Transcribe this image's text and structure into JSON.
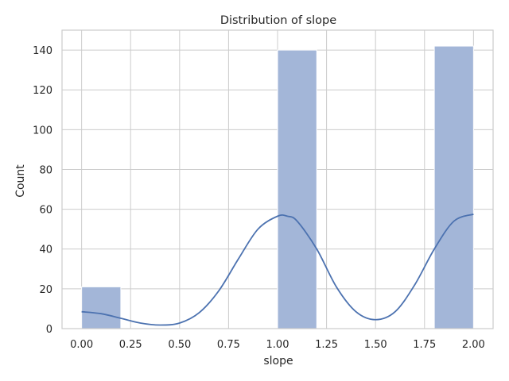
{
  "chart_data": {
    "type": "bar",
    "title": "Distribution of slope",
    "xlabel": "slope",
    "ylabel": "Count",
    "xlim": [
      -0.1,
      2.1
    ],
    "ylim": [
      0,
      150
    ],
    "xticks": [
      0.0,
      0.25,
      0.5,
      0.75,
      1.0,
      1.25,
      1.5,
      1.75,
      2.0
    ],
    "xtick_labels": [
      "0.00",
      "0.25",
      "0.50",
      "0.75",
      "1.00",
      "1.25",
      "1.50",
      "1.75",
      "2.00"
    ],
    "yticks": [
      0,
      20,
      40,
      60,
      80,
      100,
      120,
      140
    ],
    "ytick_labels": [
      "0",
      "20",
      "40",
      "60",
      "80",
      "100",
      "120",
      "140"
    ],
    "grid": true,
    "bins": [
      {
        "x0": 0.0,
        "x1": 0.2,
        "count": 21
      },
      {
        "x0": 0.2,
        "x1": 0.4,
        "count": 0
      },
      {
        "x0": 0.4,
        "x1": 0.6,
        "count": 0
      },
      {
        "x0": 0.6,
        "x1": 0.8,
        "count": 0
      },
      {
        "x0": 0.8,
        "x1": 1.0,
        "count": 0
      },
      {
        "x0": 1.0,
        "x1": 1.2,
        "count": 140
      },
      {
        "x0": 1.2,
        "x1": 1.4,
        "count": 0
      },
      {
        "x0": 1.4,
        "x1": 1.6,
        "count": 0
      },
      {
        "x0": 1.6,
        "x1": 1.8,
        "count": 0
      },
      {
        "x0": 1.8,
        "x1": 2.0,
        "count": 142
      }
    ],
    "kde": {
      "x": [
        0.0,
        0.1,
        0.2,
        0.3,
        0.4,
        0.5,
        0.6,
        0.7,
        0.8,
        0.9,
        1.0,
        1.05,
        1.1,
        1.2,
        1.3,
        1.4,
        1.5,
        1.6,
        1.7,
        1.8,
        1.9,
        2.0
      ],
      "y": [
        8.5,
        7.5,
        5.2,
        2.8,
        1.8,
        2.8,
        8.0,
        19.0,
        35.0,
        50.0,
        56.5,
        56.5,
        54.0,
        40.0,
        21.0,
        8.5,
        4.5,
        8.5,
        22.0,
        40.0,
        54.0,
        57.5
      ]
    },
    "colors": {
      "bar_fill": "#a3b6d8",
      "bar_edge": "#ffffff",
      "kde_line": "#4c72b0",
      "grid": "#cccccc",
      "axes_edge": "#cccccc",
      "text": "#262626"
    }
  }
}
